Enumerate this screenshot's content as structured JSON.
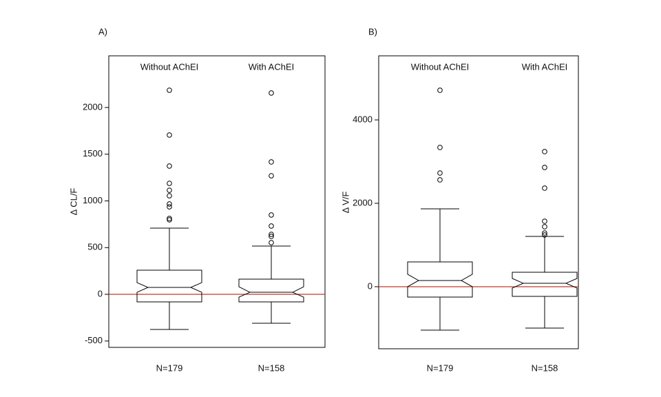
{
  "chart_data": [
    {
      "type": "box",
      "panel_label": "A)",
      "ylabel": "Δ CL/F",
      "categories": [
        "Without AChEI",
        "With AChEI"
      ],
      "n_labels": [
        "N=179",
        "N=158"
      ],
      "boxes": [
        {
          "whislo": -376,
          "q1": -81,
          "notch_lo": 22,
          "med": 74,
          "notch_hi": 125,
          "q3": 258,
          "whishi": 708,
          "fliers": [
            2185,
            1705,
            1373,
            1188,
            1114,
            1055,
            967,
            937,
            812,
            797
          ]
        },
        {
          "whislo": -310,
          "q1": -81,
          "notch_lo": -30,
          "med": 22,
          "notch_hi": 81,
          "q3": 162,
          "whishi": 517,
          "fliers": [
            2155,
            1417,
            1269,
            849,
            731,
            642,
            620,
            553
          ]
        }
      ],
      "ylim": [
        -568,
        2553
      ],
      "yticks": [
        -500,
        0,
        500,
        1000,
        1500,
        2000
      ],
      "ref_line": 0,
      "ref_color": "#c0392b",
      "color": "#000000"
    },
    {
      "type": "box",
      "panel_label": "B)",
      "ylabel": "Δ V/F",
      "categories": [
        "Without AChEI",
        "With AChEI"
      ],
      "n_labels": [
        "N=179",
        "N=158"
      ],
      "boxes": [
        {
          "whislo": -1041,
          "q1": -248,
          "notch_lo": 0,
          "med": 149,
          "notch_hi": 298,
          "q3": 595,
          "whishi": 1868,
          "fliers": [
            4711,
            3339,
            2727,
            2562
          ]
        },
        {
          "whislo": -992,
          "q1": -231,
          "notch_lo": -33,
          "med": 83,
          "notch_hi": 198,
          "q3": 347,
          "whishi": 1207,
          "fliers": [
            3240,
            2860,
            2364,
            1570,
            1438,
            1289,
            1240
          ]
        }
      ],
      "ylim": [
        -1488,
        5537
      ],
      "yticks": [
        0,
        2000,
        4000
      ],
      "ref_line": 0,
      "ref_color": "#c0392b",
      "color": "#000000"
    }
  ]
}
